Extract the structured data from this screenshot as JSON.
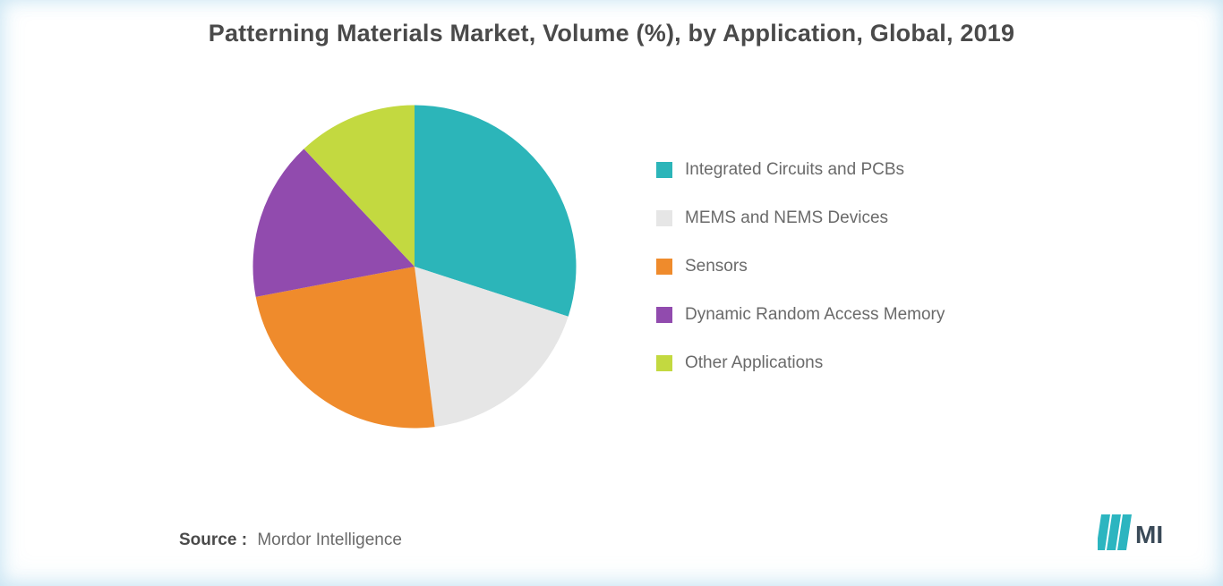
{
  "title": "Patterning Materials Market, Volume (%), by Application, Global, 2019",
  "source_label": "Source :",
  "source_value": "Mordor Intelligence",
  "logo": {
    "bar_color": "#2cb5c0",
    "text_color": "#3a4a58"
  },
  "chart": {
    "type": "pie",
    "background_color": "#ffffff",
    "radius": 190,
    "start_angle": -90,
    "slices": [
      {
        "label": "Integrated Circuits and PCBs",
        "value": 30,
        "color": "#2cb5b9"
      },
      {
        "label": "MEMS and NEMS Devices",
        "value": 18,
        "color": "#e6e6e6"
      },
      {
        "label": "Sensors",
        "value": 24,
        "color": "#ef8b2c"
      },
      {
        "label": "Dynamic Random Access Memory",
        "value": 16,
        "color": "#914bae"
      },
      {
        "label": "Other Applications",
        "value": 12,
        "color": "#c3d940"
      }
    ],
    "title_fontsize": 27,
    "legend_fontsize": 19,
    "legend_color": "#6a6a6a",
    "swatch_size": 18
  }
}
